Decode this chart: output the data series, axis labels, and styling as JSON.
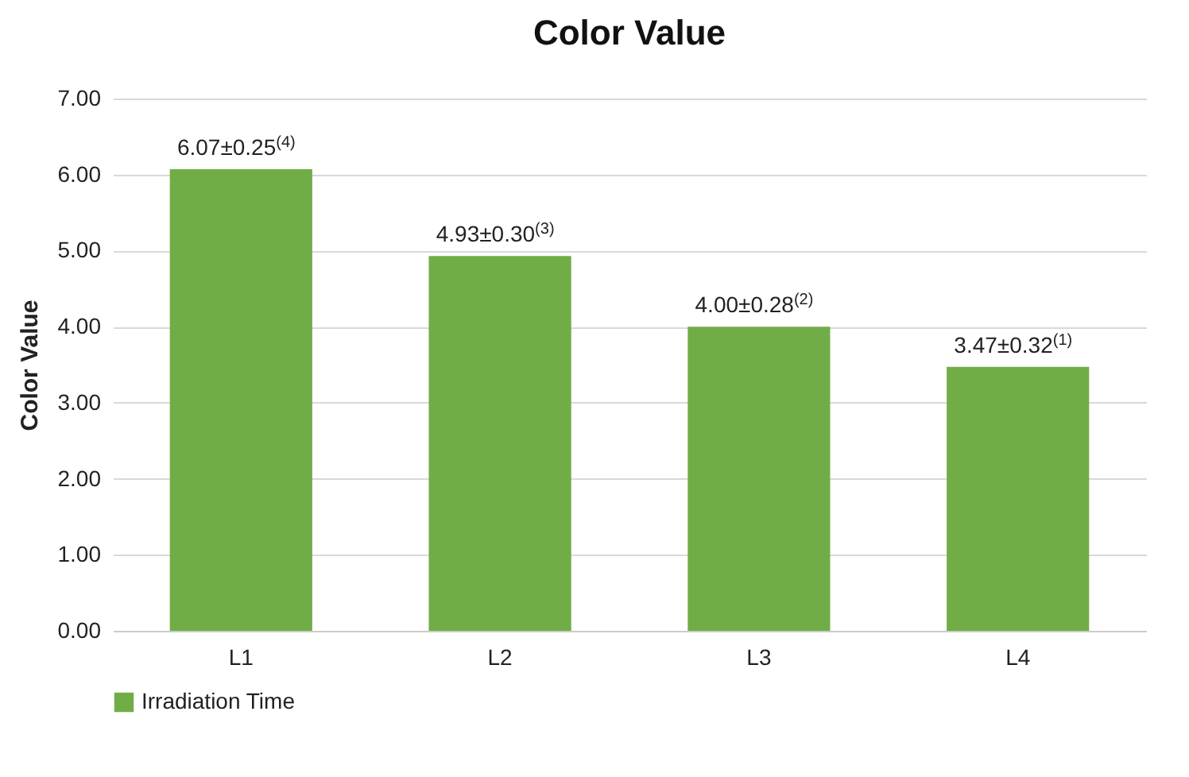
{
  "chart_data": {
    "type": "bar",
    "title": "Color Value",
    "ylabel": "Color Value",
    "categories": [
      "L1",
      "L2",
      "L3",
      "L4"
    ],
    "series": [
      {
        "name": "Irradiation Time",
        "color": "#70ad47",
        "values": [
          6.07,
          4.93,
          4.0,
          3.47
        ],
        "value_labels": [
          "6.07±0.25$^{(4)}$",
          "4.93±0.30$^{(3)}$",
          "4.00±0.28$^{(2)}$",
          "3.47±0.32$^{(1)}$"
        ]
      }
    ],
    "ylim": [
      0,
      7
    ],
    "yticks": [
      {
        "value": 0,
        "label": "0.00"
      },
      {
        "value": 1,
        "label": "1.00"
      },
      {
        "value": 2,
        "label": "2.00"
      },
      {
        "value": 3,
        "label": "3.00"
      },
      {
        "value": 4,
        "label": "4.00"
      },
      {
        "value": 5,
        "label": "5.00"
      },
      {
        "value": 6,
        "label": "6.00"
      },
      {
        "value": 7,
        "label": "7.00"
      }
    ],
    "grid": true,
    "legend": "bottom"
  }
}
